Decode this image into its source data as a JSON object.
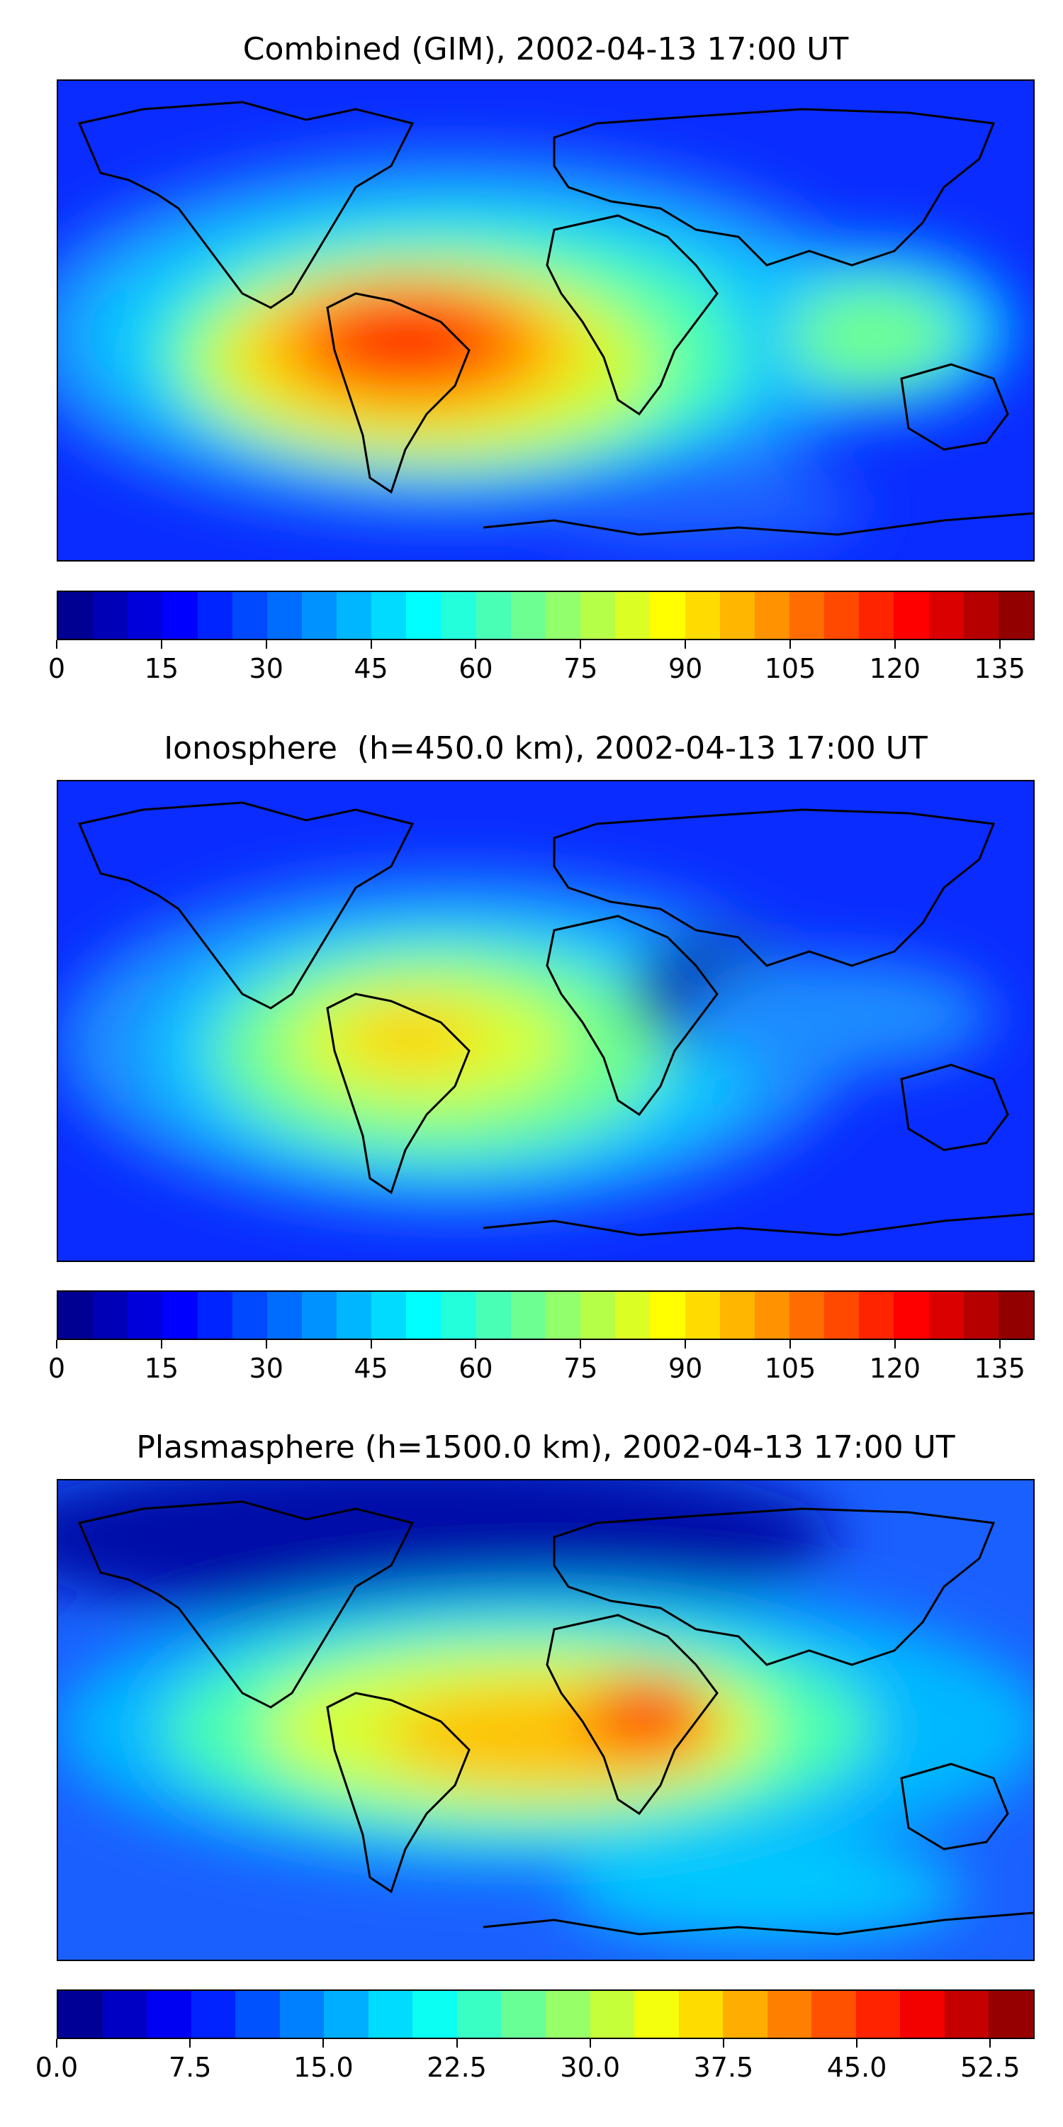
{
  "panels": [
    {
      "title": "Combined (GIM), 2002-04-13 17:00 UT",
      "colorbar": {
        "vmin": 0,
        "vmax": 140,
        "levels": 28,
        "ticks": [
          "0",
          "15",
          "30",
          "45",
          "60",
          "75",
          "90",
          "105",
          "120",
          "135"
        ]
      }
    },
    {
      "title": "Ionosphere  (h=450.0 km), 2002-04-13 17:00 UT",
      "colorbar": {
        "vmin": 0,
        "vmax": 140,
        "levels": 28,
        "ticks": [
          "0",
          "15",
          "30",
          "45",
          "60",
          "75",
          "90",
          "105",
          "120",
          "135"
        ]
      }
    },
    {
      "title": "Plasmasphere (h=1500.0 km), 2002-04-13 17:00 UT",
      "colorbar": {
        "vmin": 0,
        "vmax": 55,
        "levels": 22,
        "ticks": [
          "0.0",
          "7.5",
          "15.0",
          "22.5",
          "30.0",
          "37.5",
          "45.0",
          "52.5"
        ]
      }
    }
  ],
  "colormap": "jet"
}
